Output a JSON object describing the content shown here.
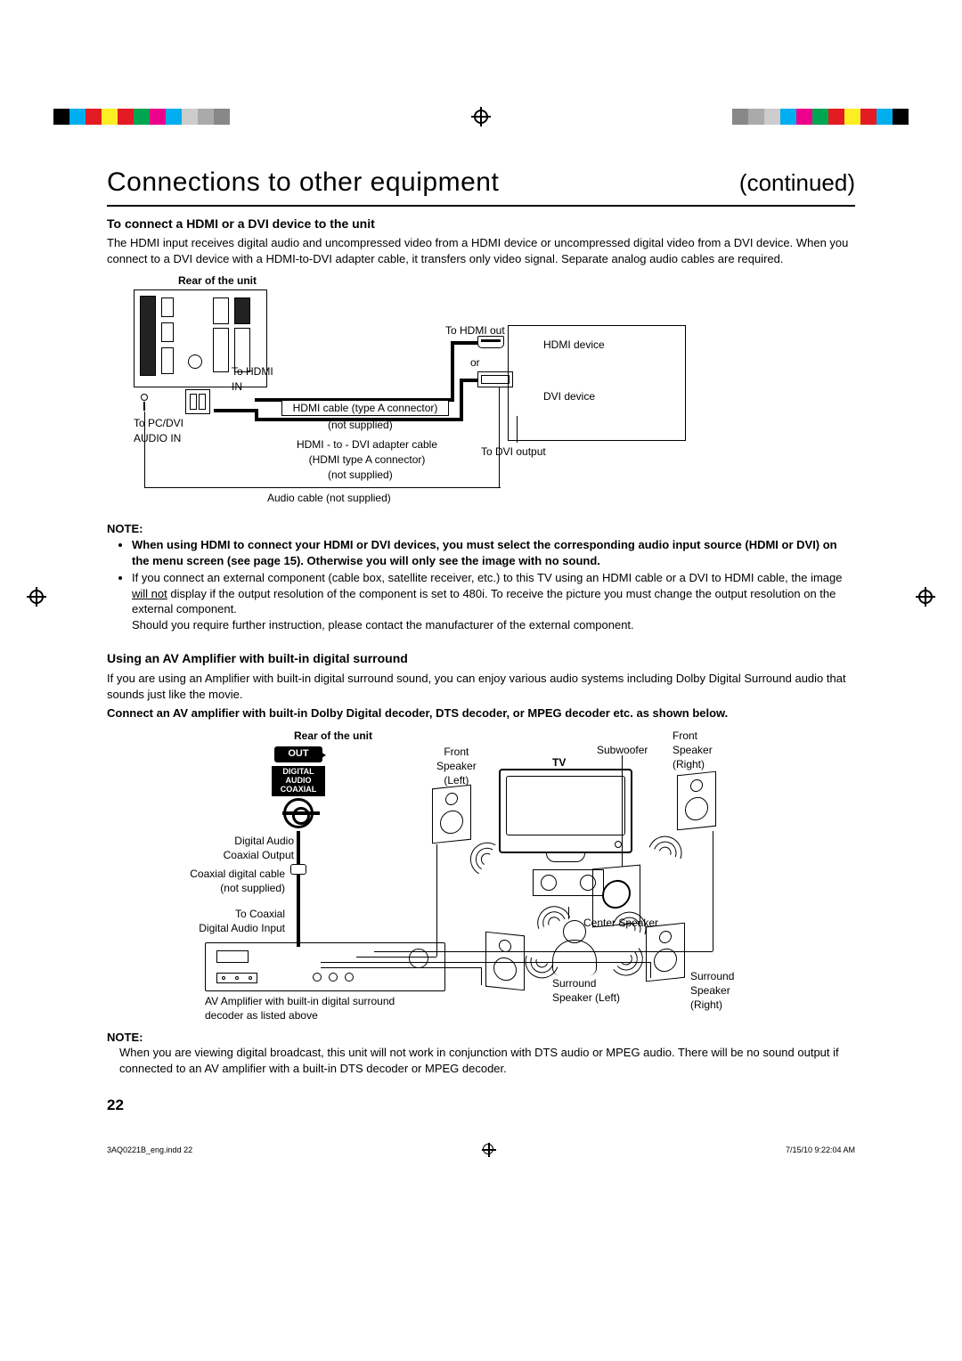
{
  "header": {
    "title": "Connections to other equipment",
    "continued": "(continued)"
  },
  "hdmi": {
    "section_title": "To connect a HDMI or a DVI device to the unit",
    "para": "The HDMI input receives digital audio and uncompressed video from a HDMI device or uncompressed digital video from a DVI device. When you connect to a DVI device with a HDMI-to-DVI adapter cable, it transfers only video signal. Separate analog audio cables are required.",
    "rear_label": "Rear of the unit",
    "to_hdmi_in_1": "To HDMI",
    "to_hdmi_in_2": "IN",
    "to_pcdvi_1": "To PC/DVI",
    "to_pcdvi_2": "AUDIO IN",
    "hdmi_cable": "HDMI cable (type A connector)",
    "not_supplied": "(not supplied)",
    "hdmi_dvi_adapter_1": "HDMI - to - DVI adapter cable",
    "hdmi_dvi_adapter_2": "(HDMI type A connector)",
    "audio_cable": "Audio cable (not supplied)",
    "to_hdmi_out": "To HDMI out",
    "or": "or",
    "hdmi_device": "HDMI device",
    "dvi_device": "DVI device",
    "to_dvi_output": "To DVI output"
  },
  "note1": {
    "heading": "NOTE:",
    "b1_bold": "When using HDMI to connect your HDMI or DVI devices, you must select the corresponding audio input source (HDMI or DVI) on the menu screen (see page 15). Otherwise you will only see the image with no sound.",
    "b2_pre": "If you connect an external component (cable box, satellite receiver, etc.) to this TV using an HDMI cable or a DVI to HDMI cable, the image ",
    "b2_under": "will not",
    "b2_post": " display if the output resolution of the component is set to 480i. To receive the picture you must change the output resolution on the external component.",
    "b2_line3": "Should you require further instruction, please contact the manufacturer of the external component."
  },
  "av": {
    "section_title": "Using an AV Amplifier with built-in digital surround",
    "para1": "If you are using an Amplifier with built-in digital surround sound, you can enjoy various audio systems including Dolby Digital Surround audio that sounds just like the movie.",
    "para2_bold": "Connect an AV amplifier with built-in Dolby Digital decoder, DTS decoder, or MPEG decoder etc. as shown below.",
    "rear_label": "Rear of the unit",
    "out": "OUT",
    "dac1": "DIGITAL",
    "dac2": "AUDIO",
    "dac3": "COAXIAL",
    "digital_audio_1": "Digital Audio",
    "digital_audio_2": "Coaxial Output",
    "coax_cable_1": "Coaxial digital cable",
    "coax_cable_2": "(not supplied)",
    "to_coax_1": "To Coaxial",
    "to_coax_2": "Digital Audio Input",
    "avamp_label_1": "AV Amplifier with built-in digital surround",
    "avamp_label_2": "decoder as listed above",
    "tv": "TV",
    "front_left_1": "Front",
    "front_left_2": "Speaker",
    "front_left_3": "(Left)",
    "front_right_1": "Front",
    "front_right_2": "Speaker",
    "front_right_3": "(Right)",
    "subwoofer": "Subwoofer",
    "center": "Center Speaker",
    "surr_left_1": "Surround",
    "surr_left_2": "Speaker (Left)",
    "surr_right_1": "Surround",
    "surr_right_2": "Speaker",
    "surr_right_3": "(Right)"
  },
  "note2": {
    "heading": "NOTE:",
    "text": "When you are viewing digital broadcast, this unit will not work in conjunction with DTS audio or MPEG audio. There will be no sound output if connected to an AV amplifier with a built-in DTS decoder or MPEG decoder."
  },
  "page_number": "22",
  "footer": {
    "left": "3AQ0221B_eng.indd   22",
    "right": "7/15/10   9:22:04 AM"
  },
  "colorbars": {
    "left": [
      "#000000",
      "#00adee",
      "#e31b23",
      "#fcee23",
      "#e31b23",
      "#00a551",
      "#ed008c",
      "#00adee",
      "#cccccc",
      "#aaaaaa",
      "#888888"
    ],
    "right": [
      "#888888",
      "#aaaaaa",
      "#cccccc",
      "#00adee",
      "#ed008c",
      "#00a551",
      "#e31b23",
      "#fcee23",
      "#e31b23",
      "#00adee",
      "#000000"
    ]
  }
}
